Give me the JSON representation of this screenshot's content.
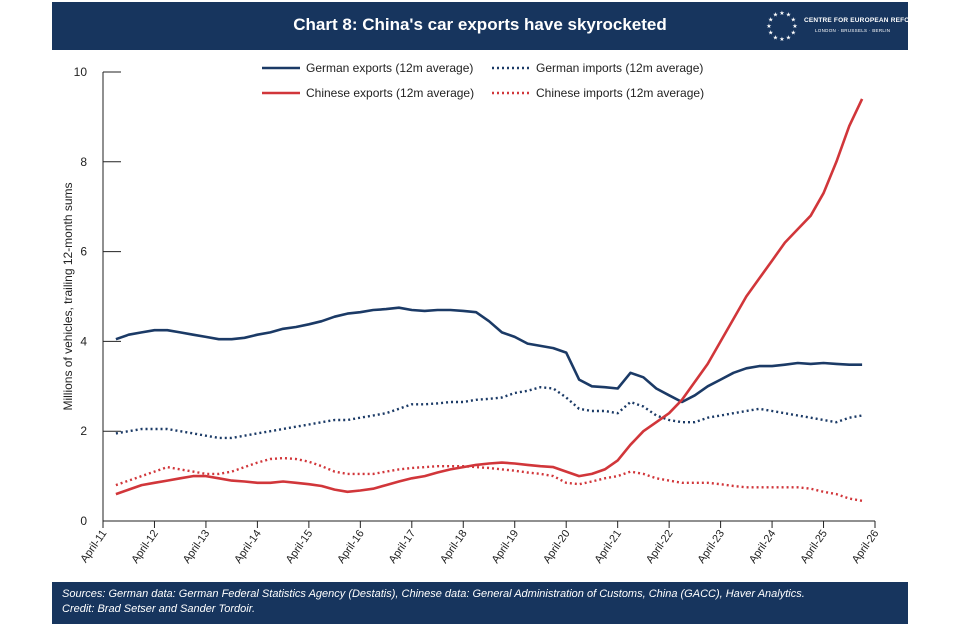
{
  "header": {
    "title": "Chart 8: China's car exports have skyrocketed"
  },
  "logo": {
    "name": "CENTRE FOR EUROPEAN REFORM",
    "cities": "LONDON · BRUSSELS · BERLIN"
  },
  "footer": {
    "sources": "Sources: German data: German Federal Statistics Agency (Destatis), Chinese data: General Administration of Customs, China (GACC), Haver Analytics.",
    "credit": "Credit: Brad Setser and Sander Tordoir."
  },
  "colors": {
    "navy": "#17355e",
    "red": "#d1363a",
    "german": "#1b3a66",
    "chinese": "#d1363a"
  },
  "chart_data": {
    "type": "line",
    "title": "Chart 8: China's car exports have skyrocketed",
    "ylabel": "Millions of vehicles, trailing 12-month sums",
    "xlabel": "",
    "ylim": [
      0,
      10
    ],
    "yticks": [
      "0",
      "2",
      "4",
      "6",
      "8",
      "10"
    ],
    "xticks": [
      "April-11",
      "April-12",
      "April-13",
      "April-14",
      "April-15",
      "April-16",
      "April-17",
      "April-18",
      "April-19",
      "April-20",
      "April-21",
      "April-22",
      "April-23",
      "April-24",
      "April-25",
      "April-26"
    ],
    "grid": false,
    "legend_position": "top-center",
    "series": [
      {
        "name": "German exports (12m average)",
        "color": "#1b3a66",
        "style": "solid",
        "x": [
          2011.25,
          2011.5,
          2011.75,
          2012.0,
          2012.25,
          2012.5,
          2012.75,
          2013.0,
          2013.25,
          2013.5,
          2013.75,
          2014.0,
          2014.25,
          2014.5,
          2014.75,
          2015.0,
          2015.25,
          2015.5,
          2015.75,
          2016.0,
          2016.25,
          2016.5,
          2016.75,
          2017.0,
          2017.25,
          2017.5,
          2017.75,
          2018.0,
          2018.25,
          2018.5,
          2018.75,
          2019.0,
          2019.25,
          2019.5,
          2019.75,
          2020.0,
          2020.25,
          2020.5,
          2020.75,
          2021.0,
          2021.25,
          2021.5,
          2021.75,
          2022.0,
          2022.25,
          2022.5,
          2022.75,
          2023.0,
          2023.25,
          2023.5,
          2023.75,
          2024.0,
          2024.25,
          2024.5,
          2024.75,
          2025.0,
          2025.25,
          2025.5,
          2025.75
        ],
        "y": [
          4.05,
          4.15,
          4.2,
          4.25,
          4.25,
          4.2,
          4.15,
          4.1,
          4.05,
          4.05,
          4.08,
          4.15,
          4.2,
          4.28,
          4.32,
          4.38,
          4.45,
          4.55,
          4.62,
          4.65,
          4.7,
          4.72,
          4.75,
          4.7,
          4.68,
          4.7,
          4.7,
          4.68,
          4.65,
          4.45,
          4.2,
          4.1,
          3.95,
          3.9,
          3.85,
          3.75,
          3.15,
          3.0,
          2.98,
          2.95,
          3.3,
          3.2,
          2.95,
          2.8,
          2.65,
          2.8,
          3.0,
          3.15,
          3.3,
          3.4,
          3.45,
          3.45,
          3.48,
          3.52,
          3.5,
          3.52,
          3.5,
          3.48,
          3.48
        ]
      },
      {
        "name": "German imports (12m average)",
        "color": "#1b3a66",
        "style": "dotted",
        "x": [
          2011.25,
          2011.5,
          2011.75,
          2012.0,
          2012.25,
          2012.5,
          2012.75,
          2013.0,
          2013.25,
          2013.5,
          2013.75,
          2014.0,
          2014.25,
          2014.5,
          2014.75,
          2015.0,
          2015.25,
          2015.5,
          2015.75,
          2016.0,
          2016.25,
          2016.5,
          2016.75,
          2017.0,
          2017.25,
          2017.5,
          2017.75,
          2018.0,
          2018.25,
          2018.5,
          2018.75,
          2019.0,
          2019.25,
          2019.5,
          2019.75,
          2020.0,
          2020.25,
          2020.5,
          2020.75,
          2021.0,
          2021.25,
          2021.5,
          2021.75,
          2022.0,
          2022.25,
          2022.5,
          2022.75,
          2023.0,
          2023.25,
          2023.5,
          2023.75,
          2024.0,
          2024.25,
          2024.5,
          2024.75,
          2025.0,
          2025.25,
          2025.5,
          2025.75
        ],
        "y": [
          1.95,
          2.0,
          2.05,
          2.05,
          2.05,
          2.0,
          1.95,
          1.9,
          1.85,
          1.85,
          1.9,
          1.95,
          2.0,
          2.05,
          2.1,
          2.15,
          2.2,
          2.25,
          2.25,
          2.3,
          2.35,
          2.4,
          2.5,
          2.6,
          2.6,
          2.62,
          2.65,
          2.65,
          2.7,
          2.72,
          2.75,
          2.85,
          2.9,
          2.98,
          2.95,
          2.75,
          2.5,
          2.45,
          2.45,
          2.4,
          2.65,
          2.55,
          2.35,
          2.25,
          2.2,
          2.2,
          2.3,
          2.35,
          2.4,
          2.45,
          2.5,
          2.45,
          2.4,
          2.35,
          2.3,
          2.25,
          2.2,
          2.3,
          2.35
        ]
      },
      {
        "name": "Chinese exports (12m average)",
        "color": "#d1363a",
        "style": "solid",
        "x": [
          2011.25,
          2011.5,
          2011.75,
          2012.0,
          2012.25,
          2012.5,
          2012.75,
          2013.0,
          2013.25,
          2013.5,
          2013.75,
          2014.0,
          2014.25,
          2014.5,
          2014.75,
          2015.0,
          2015.25,
          2015.5,
          2015.75,
          2016.0,
          2016.25,
          2016.5,
          2016.75,
          2017.0,
          2017.25,
          2017.5,
          2017.75,
          2018.0,
          2018.25,
          2018.5,
          2018.75,
          2019.0,
          2019.25,
          2019.5,
          2019.75,
          2020.0,
          2020.25,
          2020.5,
          2020.75,
          2021.0,
          2021.25,
          2021.5,
          2021.75,
          2022.0,
          2022.25,
          2022.5,
          2022.75,
          2023.0,
          2023.25,
          2023.5,
          2023.75,
          2024.0,
          2024.25,
          2024.5,
          2024.75,
          2025.0,
          2025.25,
          2025.5,
          2025.75
        ],
        "y": [
          0.6,
          0.7,
          0.8,
          0.85,
          0.9,
          0.95,
          1.0,
          1.0,
          0.95,
          0.9,
          0.88,
          0.85,
          0.85,
          0.88,
          0.85,
          0.82,
          0.78,
          0.7,
          0.65,
          0.68,
          0.72,
          0.8,
          0.88,
          0.95,
          1.0,
          1.08,
          1.15,
          1.2,
          1.25,
          1.28,
          1.3,
          1.28,
          1.25,
          1.22,
          1.2,
          1.1,
          1.0,
          1.05,
          1.15,
          1.35,
          1.7,
          2.0,
          2.2,
          2.4,
          2.7,
          3.1,
          3.5,
          4.0,
          4.5,
          5.0,
          5.4,
          5.8,
          6.2,
          6.5,
          6.8,
          7.3,
          8.0,
          8.8,
          9.4
        ]
      },
      {
        "name": "Chinese imports (12m average)",
        "color": "#d1363a",
        "style": "dotted",
        "x": [
          2011.25,
          2011.5,
          2011.75,
          2012.0,
          2012.25,
          2012.5,
          2012.75,
          2013.0,
          2013.25,
          2013.5,
          2013.75,
          2014.0,
          2014.25,
          2014.5,
          2014.75,
          2015.0,
          2015.25,
          2015.5,
          2015.75,
          2016.0,
          2016.25,
          2016.5,
          2016.75,
          2017.0,
          2017.25,
          2017.5,
          2017.75,
          2018.0,
          2018.25,
          2018.5,
          2018.75,
          2019.0,
          2019.25,
          2019.5,
          2019.75,
          2020.0,
          2020.25,
          2020.5,
          2020.75,
          2021.0,
          2021.25,
          2021.5,
          2021.75,
          2022.0,
          2022.25,
          2022.5,
          2022.75,
          2023.0,
          2023.25,
          2023.5,
          2023.75,
          2024.0,
          2024.25,
          2024.5,
          2024.75,
          2025.0,
          2025.25,
          2025.5,
          2025.75
        ],
        "y": [
          0.8,
          0.9,
          1.0,
          1.1,
          1.2,
          1.15,
          1.1,
          1.05,
          1.05,
          1.1,
          1.2,
          1.3,
          1.38,
          1.4,
          1.38,
          1.32,
          1.22,
          1.1,
          1.05,
          1.05,
          1.05,
          1.1,
          1.15,
          1.18,
          1.2,
          1.22,
          1.22,
          1.22,
          1.2,
          1.18,
          1.15,
          1.12,
          1.08,
          1.05,
          1.0,
          0.85,
          0.82,
          0.88,
          0.95,
          1.0,
          1.1,
          1.05,
          0.95,
          0.9,
          0.85,
          0.85,
          0.85,
          0.82,
          0.78,
          0.75,
          0.75,
          0.75,
          0.75,
          0.75,
          0.72,
          0.65,
          0.6,
          0.5,
          0.45
        ]
      }
    ]
  }
}
